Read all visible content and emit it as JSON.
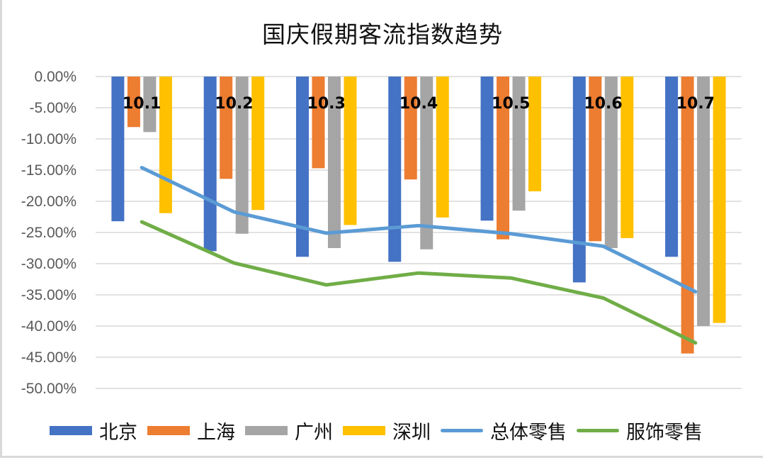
{
  "chart_data": {
    "type": "bar",
    "title": "国庆假期客流指数趋势",
    "xlabel": "",
    "ylabel": "",
    "categories": [
      "10.1",
      "10.2",
      "10.3",
      "10.4",
      "10.5",
      "10.6",
      "10.7"
    ],
    "ylim": [
      -0.5,
      0.0
    ],
    "yticks": [
      0.0,
      -0.05,
      -0.1,
      -0.15,
      -0.2,
      -0.25,
      -0.3,
      -0.35,
      -0.4,
      -0.45,
      -0.5
    ],
    "ytick_labels": [
      "0.00%",
      "-5.00%",
      "-10.00%",
      "-15.00%",
      "-20.00%",
      "-25.00%",
      "-30.00%",
      "-35.00%",
      "-40.00%",
      "-45.00%",
      "-50.00%"
    ],
    "grid": true,
    "legend_position": "bottom",
    "series": [
      {
        "name": "北京",
        "kind": "bar",
        "color": "#4472C4",
        "values": [
          -0.232,
          -0.28,
          -0.289,
          -0.297,
          -0.231,
          -0.33,
          -0.289
        ]
      },
      {
        "name": "上海",
        "kind": "bar",
        "color": "#ED7D31",
        "values": [
          -0.081,
          -0.164,
          -0.147,
          -0.165,
          -0.261,
          -0.264,
          -0.444
        ]
      },
      {
        "name": "广州",
        "kind": "bar",
        "color": "#A5A5A5",
        "values": [
          -0.089,
          -0.252,
          -0.275,
          -0.277,
          -0.215,
          -0.275,
          -0.4
        ]
      },
      {
        "name": "深圳",
        "kind": "bar",
        "color": "#FFC000",
        "values": [
          -0.219,
          -0.214,
          -0.238,
          -0.226,
          -0.184,
          -0.259,
          -0.395
        ]
      },
      {
        "name": "总体零售",
        "kind": "line",
        "color": "#5B9BD5",
        "values": [
          -0.146,
          -0.217,
          -0.251,
          -0.239,
          -0.252,
          -0.272,
          -0.345
        ]
      },
      {
        "name": "服饰零售",
        "kind": "line",
        "color": "#70AD47",
        "values": [
          -0.233,
          -0.299,
          -0.334,
          -0.315,
          -0.323,
          -0.355,
          -0.427
        ]
      }
    ]
  }
}
